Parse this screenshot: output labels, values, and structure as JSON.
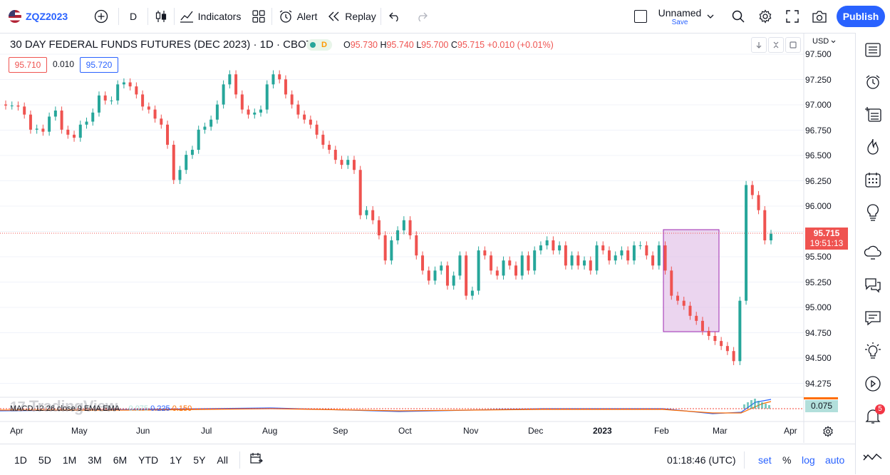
{
  "topbar": {
    "symbol": "ZQZ2023",
    "interval": "D",
    "indicators": "Indicators",
    "alert": "Alert",
    "replay": "Replay",
    "layout_name": "Unnamed",
    "save": "Save",
    "publish": "Publish"
  },
  "legend": {
    "title": "30 DAY FEDERAL FUNDS FUTURES (DEC 2023) · 1D · CBOT",
    "badge": "D",
    "o_label": "O",
    "o": "95.730",
    "h_label": "H",
    "h": "95.740",
    "l_label": "L",
    "l": "95.700",
    "c_label": "C",
    "c": "95.715",
    "change": "+0.010 (+0.01%)",
    "bid": "95.710",
    "spread": "0.010",
    "ask": "95.720"
  },
  "price_axis": {
    "currency": "USD",
    "labels": [
      "97.500",
      "97.250",
      "97.000",
      "96.750",
      "96.500",
      "96.250",
      "96.000",
      "95.750",
      "95.500",
      "95.250",
      "95.000",
      "94.750",
      "94.500",
      "94.275"
    ],
    "last_price": "95.715",
    "countdown": "19:51:13",
    "macd_value": "0.075"
  },
  "time_axis": {
    "labels": [
      "Apr",
      "May",
      "Jun",
      "Jul",
      "Aug",
      "Sep",
      "Oct",
      "Nov",
      "Dec",
      "2023",
      "Feb",
      "Mar",
      "Apr"
    ]
  },
  "macd": {
    "label": "MACD 12 26 close 9 EMA EMA",
    "v1": "0.075",
    "v2": "0.225",
    "v3": "0.150"
  },
  "watermark": "TradingView",
  "bottombar": {
    "ranges": [
      "1D",
      "5D",
      "1M",
      "3M",
      "6M",
      "YTD",
      "1Y",
      "5Y",
      "All"
    ],
    "clock": "01:18:46 (UTC)",
    "set": "set",
    "percent": "%",
    "log": "log",
    "auto": "auto"
  },
  "notifications_count": "5",
  "colors": {
    "up": "#26a69a",
    "down": "#ef5350",
    "accent": "#2962ff",
    "highlight": "#e1bee7"
  },
  "chart_data": {
    "type": "candlestick",
    "ylim": [
      94.275,
      97.5
    ],
    "series_close": [
      96.99,
      96.99,
      96.98,
      96.9,
      96.75,
      96.76,
      96.73,
      96.88,
      96.94,
      96.75,
      96.7,
      96.67,
      96.8,
      96.83,
      96.92,
      97.09,
      97.04,
      97.04,
      97.2,
      97.22,
      97.18,
      97.1,
      96.98,
      96.95,
      96.86,
      96.8,
      96.6,
      96.25,
      96.35,
      96.5,
      96.55,
      96.75,
      96.78,
      96.85,
      97.0,
      97.2,
      97.3,
      97.1,
      96.95,
      96.9,
      96.92,
      96.95,
      97.2,
      97.3,
      97.25,
      97.1,
      97.0,
      96.9,
      96.85,
      96.8,
      96.7,
      96.6,
      96.55,
      96.45,
      96.4,
      96.45,
      96.35,
      95.9,
      95.95,
      95.85,
      95.7,
      95.45,
      95.65,
      95.75,
      95.85,
      95.7,
      95.5,
      95.35,
      95.25,
      95.35,
      95.4,
      95.2,
      95.3,
      95.5,
      95.1,
      95.15,
      95.55,
      95.5,
      95.35,
      95.3,
      95.45,
      95.4,
      95.3,
      95.5,
      95.35,
      95.55,
      95.6,
      95.65,
      95.55,
      95.6,
      95.4,
      95.5,
      95.4,
      95.45,
      95.35,
      95.6,
      95.55,
      95.45,
      95.5,
      95.55,
      95.45,
      95.6,
      95.6,
      95.5,
      95.4,
      95.6,
      95.35,
      95.1,
      95.05,
      95.0,
      94.9,
      94.85,
      94.75,
      94.7,
      94.65,
      94.6,
      94.55,
      94.45,
      95.05,
      96.2,
      96.1,
      95.95,
      95.65,
      95.715
    ]
  }
}
